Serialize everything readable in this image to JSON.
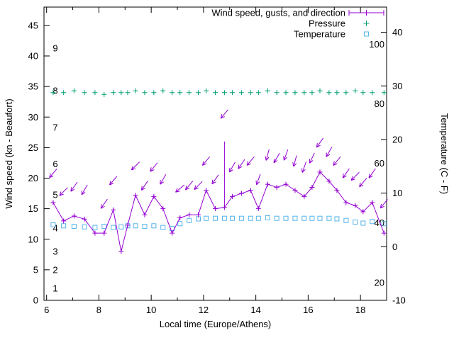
{
  "figure": {
    "background": "#ffffff",
    "border_color": "#000000",
    "text_color": "#000000",
    "colors": {
      "wind": "#9400d3",
      "pressure": "#009e73",
      "temperature": "#56b4e9"
    }
  },
  "legend": [
    {
      "label": "Wind speed, gusts, and direction",
      "series": "wind",
      "marker": "errorbar-plus"
    },
    {
      "label": "Pressure",
      "series": "pressure",
      "marker": "plus"
    },
    {
      "label": "Temperature",
      "series": "temperature",
      "marker": "open-square"
    }
  ],
  "axes": {
    "x": {
      "label": "Local time (Europe/Athens)",
      "min": 5.9,
      "max": 19.0,
      "major_ticks": [
        6,
        8,
        10,
        12,
        14,
        16,
        18
      ],
      "minor_ticks": [
        7,
        9,
        11,
        13,
        15,
        17,
        19
      ]
    },
    "y_left": {
      "label": "Wind speed (kn - Beaufort)",
      "min": 0,
      "max": 48,
      "ticks": [
        0,
        5,
        10,
        15,
        20,
        25,
        30,
        35,
        40,
        45
      ],
      "beaufort_labels": [
        {
          "text": "1",
          "kn": 2
        },
        {
          "text": "2",
          "kn": 5
        },
        {
          "text": "3",
          "kn": 8
        },
        {
          "text": "4",
          "kn": 11.8
        },
        {
          "text": "5",
          "kn": 17.3
        },
        {
          "text": "6",
          "kn": 22.3
        },
        {
          "text": "7",
          "kn": 28.3
        },
        {
          "text": "8",
          "kn": 34.3
        },
        {
          "text": "9",
          "kn": 41.3
        }
      ]
    },
    "y_right": {
      "label": "Temperature (C - F)",
      "min": -10,
      "max": 44.7,
      "ticks": [
        -10,
        0,
        10,
        20,
        30,
        40
      ],
      "fahrenheit_labels": [
        "20",
        "40",
        "60",
        "80",
        "100"
      ],
      "fahrenheit_values": [
        20,
        40,
        60,
        80,
        100
      ]
    }
  },
  "chart_data": {
    "type": "line",
    "title": "",
    "xlabel": "Local time (Europe/Athens)",
    "ylabel_left": "Wind speed (kn - Beaufort)",
    "ylabel_right": "Temperature (C - F)",
    "x_range": [
      5.9,
      19.0
    ],
    "ylim_left": [
      0,
      48
    ],
    "ylim_right": [
      -10,
      44.7
    ],
    "grid": false,
    "legend_position": "top-center-inside",
    "x_hours": [
      6.25,
      6.65,
      7.05,
      7.45,
      7.85,
      8.2,
      8.55,
      8.85,
      9.1,
      9.4,
      9.75,
      10.1,
      10.45,
      10.8,
      11.1,
      11.45,
      11.8,
      12.1,
      12.45,
      12.8,
      13.1,
      13.45,
      13.8,
      14.1,
      14.45,
      14.8,
      15.15,
      15.5,
      15.85,
      16.15,
      16.45,
      16.8,
      17.1,
      17.45,
      17.8,
      18.1,
      18.45,
      18.9
    ],
    "series": [
      {
        "name": "Wind speed (kn)",
        "axis": "left",
        "style": "lines+plus",
        "values": [
          16,
          13,
          13.8,
          13.3,
          11,
          11,
          14.8,
          8,
          12.3,
          17.2,
          14,
          17,
          15,
          11,
          13.5,
          14,
          14,
          18,
          15,
          15.2,
          17,
          17.5,
          18,
          15,
          19,
          18.5,
          19,
          18,
          17,
          18.5,
          21,
          19.5,
          18,
          16,
          15.5,
          14.5,
          16,
          11
        ]
      },
      {
        "name": "Wind gusts (kn, upper end of error bar)",
        "axis": "left",
        "style": "yerror-up",
        "values": [
          16.3,
          13.3,
          14.1,
          13.6,
          11.3,
          11.3,
          15.1,
          8.3,
          12.6,
          17.5,
          14.3,
          17.3,
          15.3,
          11.3,
          13.8,
          14.3,
          14.3,
          18.3,
          15.3,
          26,
          17.3,
          17.8,
          18.3,
          15.3,
          19.3,
          18.8,
          19.3,
          18.3,
          17.3,
          18.8,
          21.3,
          19.8,
          18.3,
          16.3,
          15.8,
          14.8,
          16.3,
          11.3
        ]
      },
      {
        "name": "Wind direction arrow angle (deg, screen: 0=right 90=up, null=no arrow)",
        "axis": "left",
        "style": "vectors",
        "values": [
          230,
          225,
          235,
          240,
          null,
          235,
          230,
          null,
          null,
          225,
          235,
          230,
          240,
          null,
          220,
          230,
          225,
          230,
          235,
          230,
          240,
          235,
          230,
          250,
          255,
          240,
          250,
          255,
          250,
          245,
          235,
          240,
          230,
          235,
          225,
          230,
          235,
          230
        ]
      },
      {
        "name": "Pressure (plotted flat at ~34 on left-axis scale, no numeric axis shown)",
        "axis": "left",
        "style": "points-plus",
        "values": [
          34,
          34,
          34.3,
          34,
          34,
          33.7,
          34,
          34,
          34,
          34.3,
          34,
          34,
          34.3,
          34,
          34,
          34,
          34,
          34.3,
          34,
          34,
          34,
          34,
          34,
          34,
          34.3,
          34,
          34,
          34,
          34,
          34,
          34.3,
          34,
          34,
          34,
          34.3,
          34,
          34,
          34
        ]
      },
      {
        "name": "Temperature (C)",
        "axis": "right",
        "style": "points-square",
        "values": [
          4.1,
          3.9,
          3.8,
          3.7,
          3.6,
          3.8,
          3.6,
          3.7,
          3.9,
          3.9,
          3.8,
          3.9,
          3.6,
          3.4,
          4.3,
          4.9,
          5.2,
          5.3,
          5.3,
          5.3,
          5.3,
          5.3,
          5.3,
          5.3,
          5.4,
          5.3,
          5.3,
          5.3,
          5.3,
          5.3,
          5.3,
          5.3,
          5.2,
          4.9,
          4.6,
          4.4,
          4.7,
          4.3
        ]
      }
    ]
  }
}
